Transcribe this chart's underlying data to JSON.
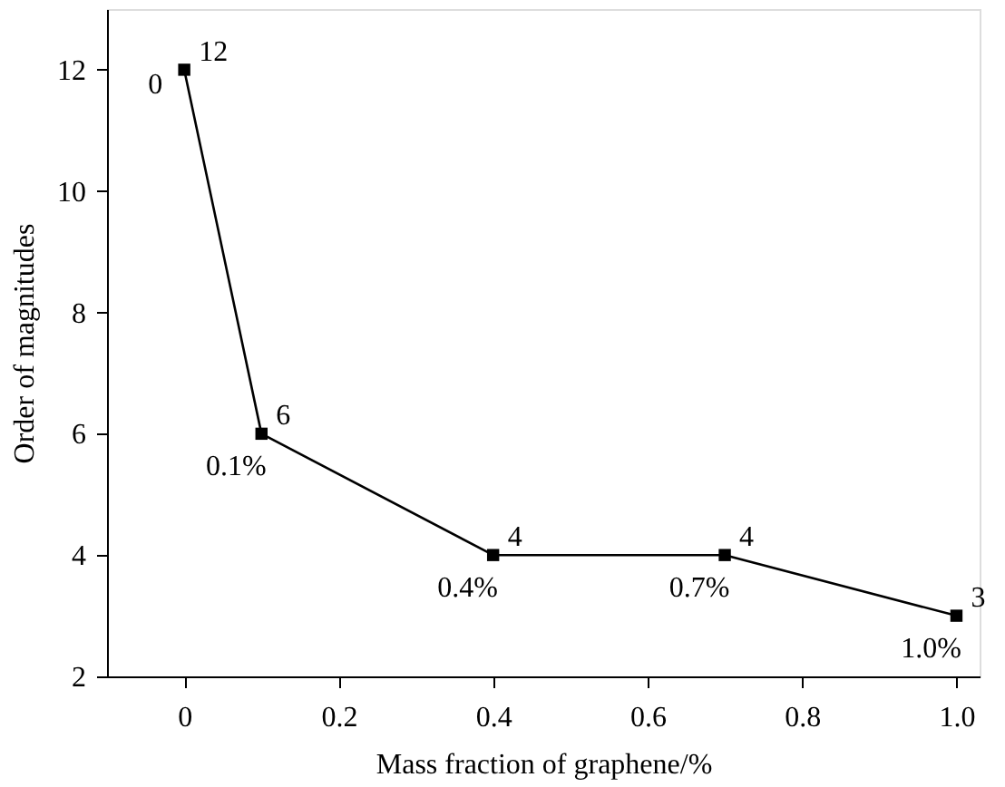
{
  "chart_data": {
    "type": "line",
    "xlabel": "Mass fraction of graphene/%",
    "ylabel": "Order of magnitudes",
    "x": [
      0,
      0.1,
      0.4,
      0.7,
      1.0
    ],
    "series": [
      {
        "color": "#000000",
        "values": [
          12,
          6,
          4,
          4,
          3
        ]
      }
    ],
    "xlim": [
      -0.1,
      1.03
    ],
    "xticks": [
      {
        "value": 0,
        "label": "0"
      },
      {
        "value": 0.2,
        "label": "0.2"
      },
      {
        "value": 0.4,
        "label": "0.4"
      },
      {
        "value": 0.6,
        "label": "0.6"
      },
      {
        "value": 0.8,
        "label": "0.8"
      },
      {
        "value": 1.0,
        "label": "1.0"
      }
    ],
    "ylim": [
      2,
      13
    ],
    "yticks": [
      2,
      4,
      6,
      8,
      10,
      12
    ],
    "data_labels": true,
    "marker": "square",
    "line_style": "solid",
    "grid": false,
    "annotations": [
      {
        "text": "0",
        "x": 0,
        "y": 12
      },
      {
        "text": "0.1%",
        "x": 0.1,
        "y": 6
      },
      {
        "text": "0.4%",
        "x": 0.4,
        "y": 4
      },
      {
        "text": "0.7%",
        "x": 0.7,
        "y": 4
      },
      {
        "text": "1.0%",
        "x": 1.0,
        "y": 3
      }
    ]
  }
}
